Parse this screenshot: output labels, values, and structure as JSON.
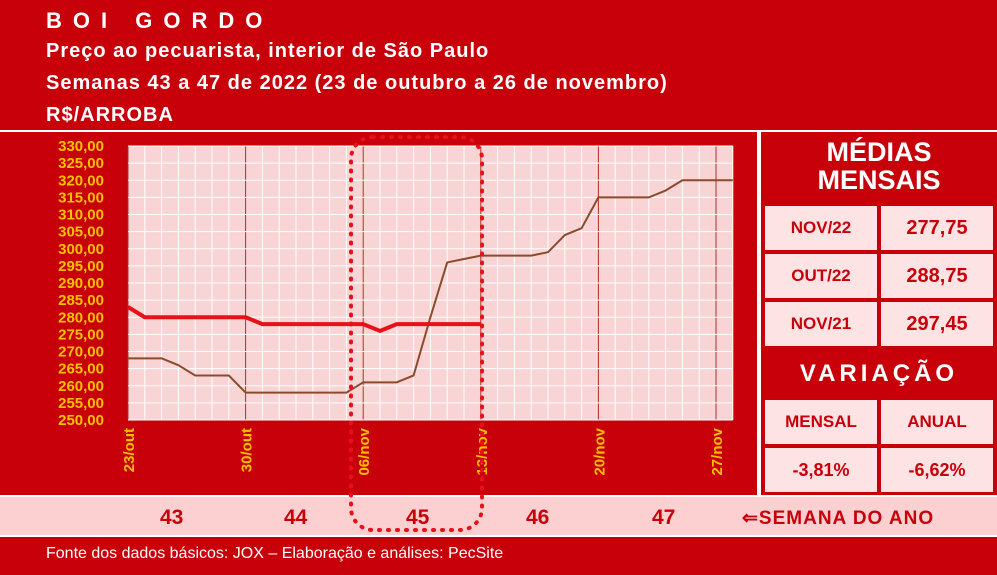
{
  "header": {
    "title": "BOI GORDO",
    "subtitle": "Preço ao pecuarista, interior de São Paulo",
    "period": "Semanas 43 a 47 de 2022 (23 de outubro a 26 de novembro)",
    "unit": "R$/ARROBA"
  },
  "chart_data": {
    "type": "line",
    "categories": [
      "23/out",
      null,
      null,
      null,
      null,
      null,
      null,
      "30/out",
      null,
      null,
      null,
      null,
      null,
      null,
      "06/nov",
      null,
      null,
      null,
      null,
      null,
      null,
      "13/nov",
      null,
      null,
      null,
      null,
      null,
      null,
      "20/nov",
      null,
      null,
      null,
      null,
      null,
      null,
      "27/nov",
      null
    ],
    "series": [
      {
        "color": "#8b4a2b",
        "values": [
          268,
          268,
          268,
          266,
          263,
          263,
          263,
          258,
          258,
          258,
          258,
          258,
          258,
          258,
          261,
          261,
          261,
          263,
          280,
          296,
          297,
          298,
          298,
          298,
          298,
          299,
          304,
          306,
          315,
          315,
          315,
          315,
          317,
          320,
          320,
          320,
          320
        ]
      },
      {
        "color": "#e8101a",
        "values": [
          283,
          280,
          280,
          280,
          280,
          280,
          280,
          280,
          278,
          278,
          278,
          278,
          278,
          278,
          278,
          276,
          278,
          278,
          278,
          278,
          278,
          278,
          null,
          null,
          null,
          null,
          null,
          null,
          null,
          null,
          null,
          null,
          null,
          null,
          null,
          null,
          null
        ]
      }
    ],
    "ylim": [
      250,
      330
    ],
    "yticks": [
      {
        "value": 250,
        "label": "250,00"
      },
      {
        "value": 255,
        "label": "255,00"
      },
      {
        "value": 260,
        "label": "260,00"
      },
      {
        "value": 265,
        "label": "265,00"
      },
      {
        "value": 270,
        "label": "270,00"
      },
      {
        "value": 275,
        "label": "275,00"
      },
      {
        "value": 280,
        "label": "280,00"
      },
      {
        "value": 285,
        "label": "285,00"
      },
      {
        "value": 290,
        "label": "290,00"
      },
      {
        "value": 295,
        "label": "295,00"
      },
      {
        "value": 300,
        "label": "300,00"
      },
      {
        "value": 305,
        "label": "305,00"
      },
      {
        "value": 310,
        "label": "310,00"
      },
      {
        "value": 315,
        "label": "315,00"
      },
      {
        "value": 320,
        "label": "320,00"
      },
      {
        "value": 325,
        "label": "325,00"
      },
      {
        "value": 330,
        "label": "330,00"
      }
    ],
    "grid": true
  },
  "side_panel": {
    "title": "MÉDIAS MENSAIS",
    "rows": [
      [
        "NOV/22",
        "277,75"
      ],
      [
        "OUT/22",
        "288,75"
      ],
      [
        "NOV/21",
        "297,45"
      ]
    ],
    "variation_title": "VARIAÇÃO",
    "variation_headers": [
      "MENSAL",
      "ANUAL"
    ],
    "variation_values": [
      "-3,81%",
      "-6,62%"
    ]
  },
  "weeks": {
    "numbers": [
      "43",
      "44",
      "45",
      "46",
      "47"
    ],
    "label": "⇐SEMANA DO ANO"
  },
  "footer": {
    "source": "Fonte dos dados básicos: JOX – Elaboração e análises: PecSite"
  }
}
